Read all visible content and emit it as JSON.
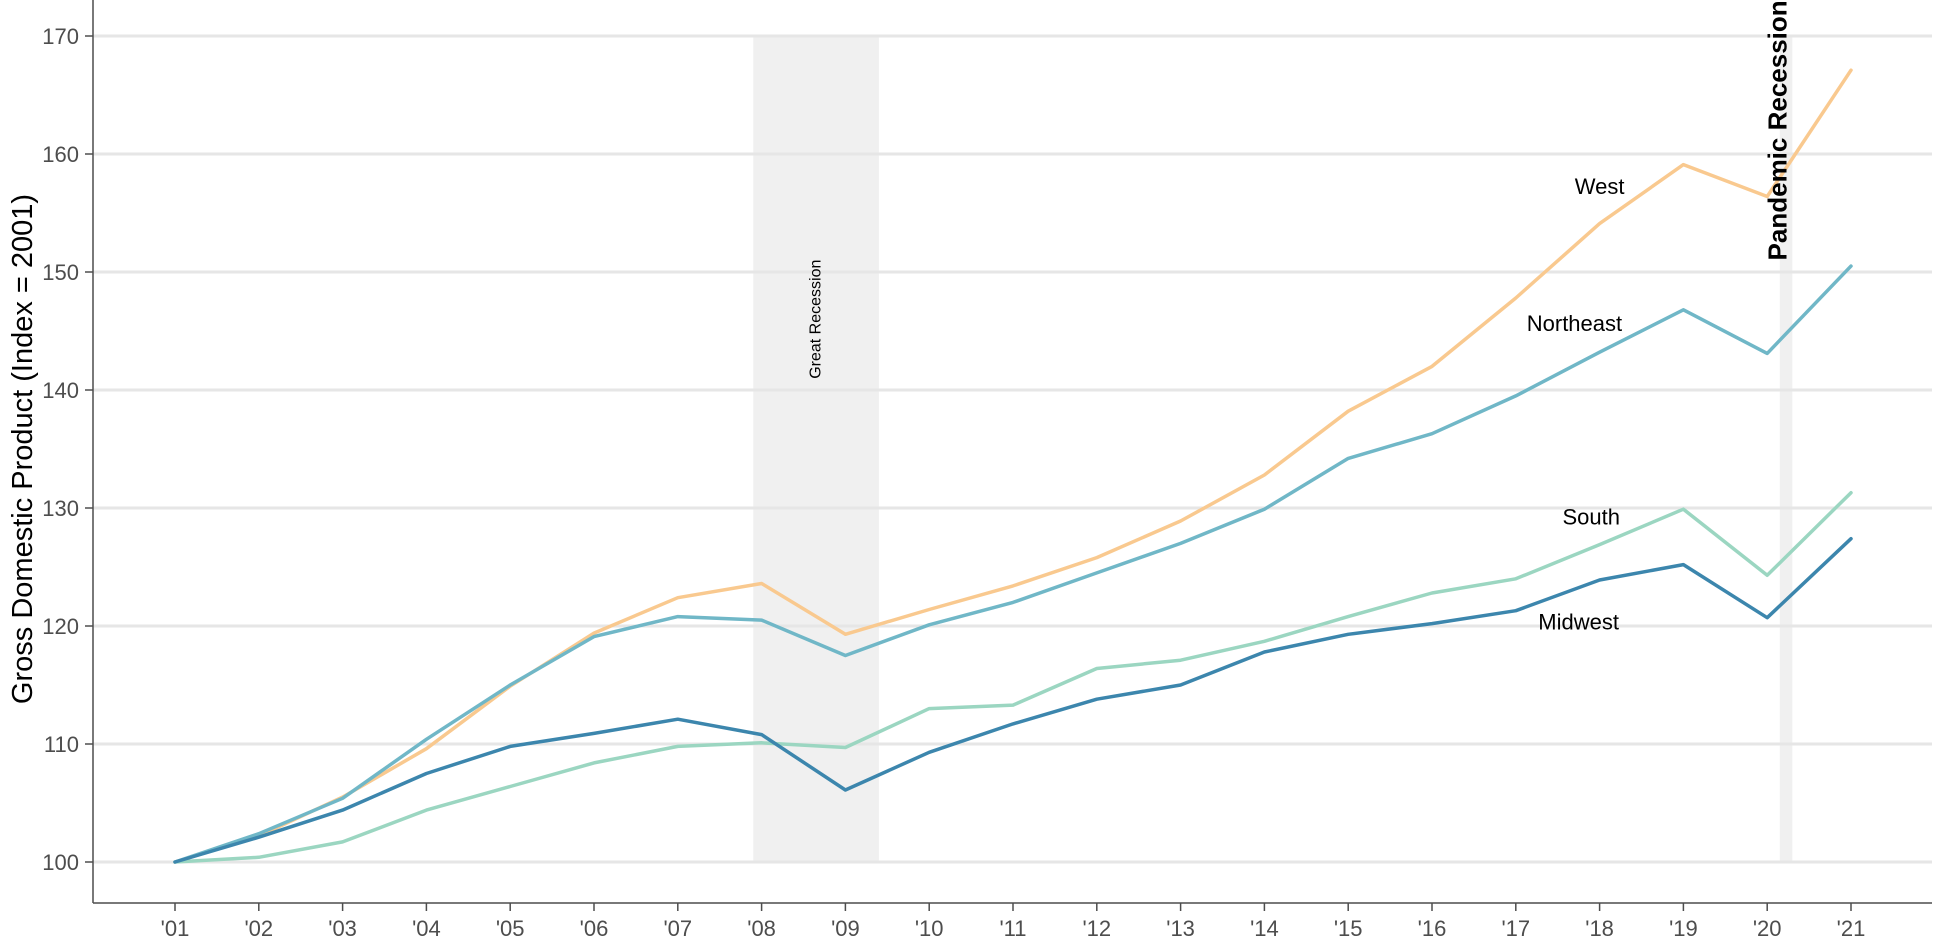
{
  "chart_data": {
    "type": "line",
    "title": "",
    "xlabel": "",
    "ylabel": "Gross Domestic Product (Index = 2001)",
    "x": [
      "'01",
      "'02",
      "'03",
      "'04",
      "'05",
      "'06",
      "'07",
      "'08",
      "'09",
      "'10",
      "'11",
      "'12",
      "'13",
      "'14",
      "'15",
      "'16",
      "'17",
      "'18",
      "'19",
      "'20",
      "'21"
    ],
    "ylim": [
      100,
      170
    ],
    "yticks": [
      100,
      110,
      120,
      130,
      140,
      150,
      160,
      170
    ],
    "grid": "horizontal",
    "legend": "direct labels",
    "series": [
      {
        "name": "West",
        "color": "#f9c98f",
        "values": [
          100,
          102.2,
          105.5,
          109.6,
          114.9,
          119.4,
          122.4,
          123.6,
          119.3,
          121.4,
          123.4,
          125.8,
          128.9,
          132.8,
          138.2,
          142.0,
          147.8,
          154.1,
          159.1,
          156.4,
          167.1
        ]
      },
      {
        "name": "Northeast",
        "color": "#70b7c7",
        "values": [
          100,
          102.4,
          105.4,
          110.4,
          115.0,
          119.1,
          120.8,
          120.5,
          117.5,
          120.1,
          122.0,
          124.5,
          127.0,
          129.9,
          134.2,
          136.3,
          139.5,
          143.2,
          146.8,
          143.1,
          150.5
        ]
      },
      {
        "name": "South",
        "color": "#9bd6c1",
        "values": [
          100,
          100.4,
          101.7,
          104.4,
          106.4,
          108.4,
          109.8,
          110.1,
          109.7,
          113.0,
          113.3,
          116.4,
          117.1,
          118.7,
          120.8,
          122.8,
          124.0,
          126.9,
          129.9,
          124.3,
          131.3
        ]
      },
      {
        "name": "Midwest",
        "color": "#3c86ad",
        "values": [
          100,
          102.1,
          104.4,
          107.5,
          109.8,
          110.9,
          112.1,
          110.8,
          106.1,
          109.3,
          111.7,
          113.8,
          115.0,
          117.8,
          119.3,
          120.2,
          121.3,
          123.9,
          125.2,
          120.7,
          127.4
        ]
      }
    ],
    "series_label_positions": [
      {
        "name": "West",
        "x": 17.0,
        "y": 157.2
      },
      {
        "name": "Northeast",
        "x": 16.7,
        "y": 145.6
      },
      {
        "name": "South",
        "x": 16.9,
        "y": 129.2
      },
      {
        "name": "Midwest",
        "x": 16.75,
        "y": 120.3
      }
    ],
    "annotations": [
      {
        "label": "Great Recession",
        "x_start": 6.9,
        "x_end": 8.4,
        "label_x": 7.7,
        "label_y": 146,
        "style": "small"
      },
      {
        "label": "Pandemic Recession",
        "x_start": 19.15,
        "x_end": 19.3,
        "label_x": 19.23,
        "label_y": 162,
        "style": "big"
      }
    ]
  }
}
